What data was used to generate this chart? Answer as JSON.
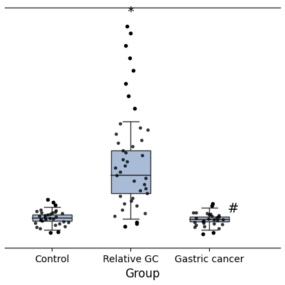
{
  "title": "",
  "xlabel": "Group",
  "ylabel": "",
  "box_color": "#a8bcd8",
  "box_edge_color": "#333333",
  "median_color": "#333333",
  "whisker_color": "#333333",
  "flier_color": "black",
  "background_color": "#ffffff",
  "groups": [
    "Control",
    "Relative GC",
    "Gastric cancer"
  ],
  "control": {
    "q1": 0.16,
    "median": 0.185,
    "q3": 0.21,
    "whisker_low": 0.09,
    "whisker_high": 0.27,
    "outliers_low": [
      0.07,
      0.075
    ],
    "outliers_high": [
      0.29,
      0.31,
      0.33
    ],
    "jitter": [
      0.1,
      0.11,
      0.12,
      0.13,
      0.14,
      0.145,
      0.15,
      0.155,
      0.16,
      0.165,
      0.17,
      0.175,
      0.18,
      0.185,
      0.19,
      0.195,
      0.2,
      0.205,
      0.21,
      0.215,
      0.22,
      0.225,
      0.23,
      0.235,
      0.24,
      0.245,
      0.25
    ]
  },
  "relative_gc": {
    "q1": 0.38,
    "median": 0.52,
    "q3": 0.72,
    "whisker_low": 0.18,
    "whisker_high": 0.95,
    "outliers_low": [
      0.12,
      0.14,
      0.15
    ],
    "outliers_high": [
      1.05,
      1.15,
      1.25,
      1.35,
      1.45,
      1.55,
      1.65
    ],
    "star_outlier": 1.75,
    "jitter": [
      0.2,
      0.22,
      0.25,
      0.28,
      0.3,
      0.32,
      0.34,
      0.36,
      0.38,
      0.4,
      0.42,
      0.45,
      0.48,
      0.5,
      0.52,
      0.55,
      0.58,
      0.6,
      0.63,
      0.65,
      0.68,
      0.7,
      0.72,
      0.75,
      0.78,
      0.8,
      0.85,
      0.88,
      0.9,
      0.93
    ]
  },
  "gastric_cancer": {
    "q1": 0.155,
    "median": 0.175,
    "q3": 0.195,
    "whisker_low": 0.09,
    "whisker_high": 0.265,
    "outliers_low": [
      0.06,
      0.07
    ],
    "outliers_high": [
      0.28,
      0.3
    ],
    "jitter": [
      0.1,
      0.11,
      0.12,
      0.13,
      0.135,
      0.14,
      0.145,
      0.15,
      0.155,
      0.16,
      0.165,
      0.17,
      0.175,
      0.18,
      0.185,
      0.19,
      0.195,
      0.2,
      0.205,
      0.21,
      0.215,
      0.22,
      0.225,
      0.23
    ]
  },
  "ylim": [
    -0.05,
    1.85
  ],
  "annotation_star": "*",
  "annotation_hash": "#",
  "fontsize_labels": 12,
  "fontsize_ticks": 10,
  "fontsize_annotations": 14
}
